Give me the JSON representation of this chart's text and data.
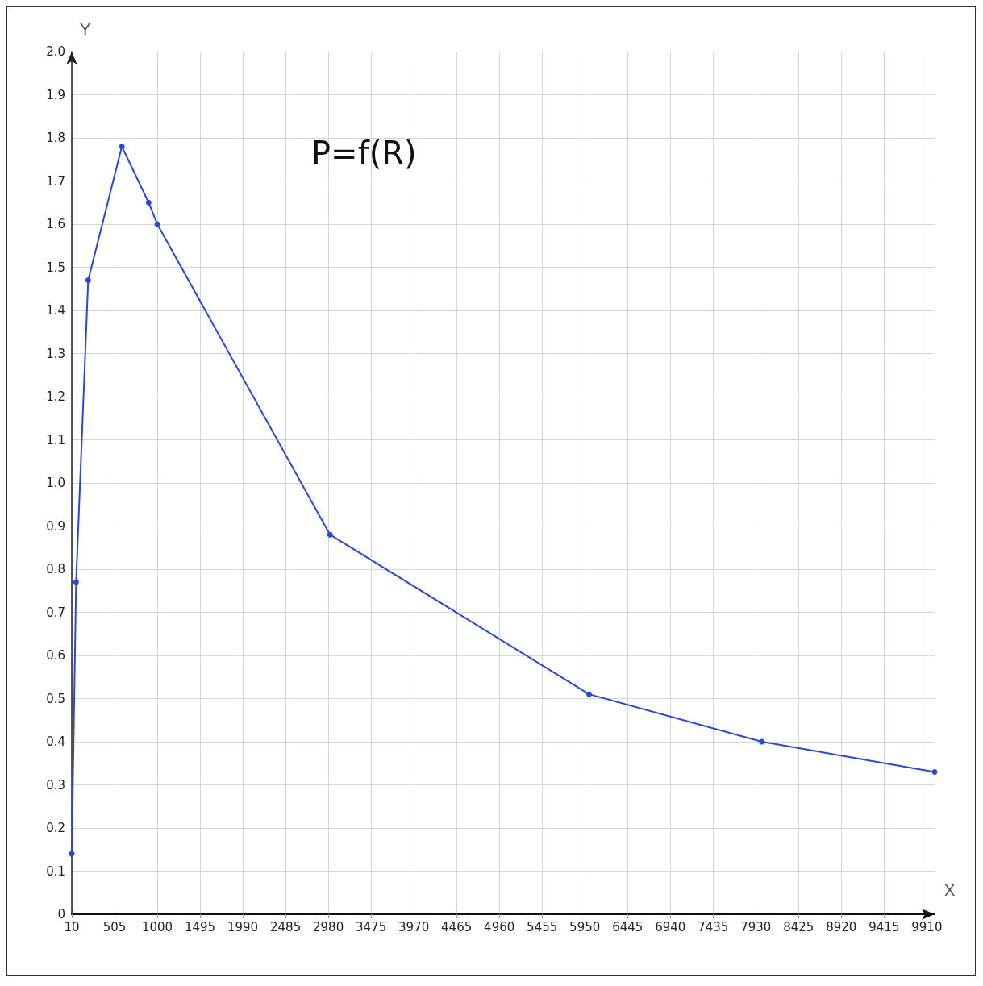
{
  "chart_data": {
    "type": "line",
    "title": "P=f(R)",
    "xlabel": "X",
    "ylabel": "Y",
    "x": [
      10,
      60,
      200,
      590,
      900,
      1000,
      3000,
      6000,
      8000,
      10000
    ],
    "series": [
      {
        "color": "#2b47d6",
        "values": [
          0.14,
          0.77,
          1.47,
          1.78,
          1.65,
          1.6,
          0.88,
          0.51,
          0.4,
          0.33
        ]
      }
    ],
    "xlim": [
      10,
      10000
    ],
    "xticks": [
      10,
      505,
      1000,
      1495,
      1990,
      2485,
      2980,
      3475,
      3970,
      4465,
      4960,
      5455,
      5950,
      6445,
      6940,
      7435,
      7930,
      8425,
      8920,
      9415,
      9910
    ],
    "ylim": [
      0,
      2.0
    ],
    "yticks": [
      0,
      0.1,
      0.2,
      0.3,
      0.4,
      0.5,
      0.6,
      0.7,
      0.8,
      0.9,
      {
        "value": 1.0,
        "label": "1.0"
      },
      1.1,
      1.2,
      1.3,
      1.4,
      1.5,
      1.6,
      1.7,
      1.8,
      1.9,
      {
        "value": 2.0,
        "label": "2.0"
      }
    ],
    "grid": true,
    "marker": "circle",
    "line_style": "solid"
  }
}
